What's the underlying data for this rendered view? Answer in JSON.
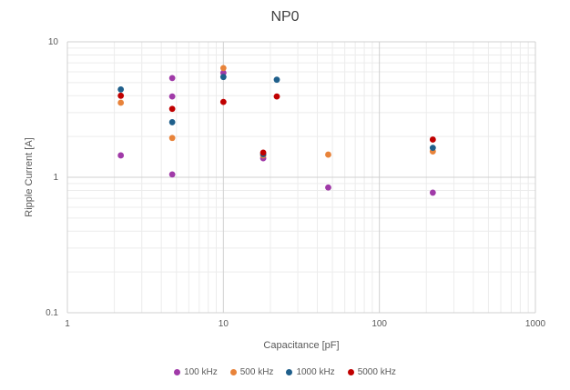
{
  "chart_data": {
    "type": "scatter",
    "title": "NP0",
    "xlabel": "Capacitance [pF]",
    "ylabel": "Ripple Current [A]",
    "xscale": "log",
    "yscale": "log",
    "xlim": [
      1,
      1000
    ],
    "ylim": [
      0.1,
      10
    ],
    "x_ticks": [
      "1",
      "10",
      "100",
      "1000"
    ],
    "y_ticks": [
      "0.1",
      "1",
      "10"
    ],
    "grid": true,
    "legend_position": "bottom",
    "series": [
      {
        "name": "100 kHz",
        "color": "#A03AA8",
        "x": [
          2.2,
          4.7,
          4.7,
          4.7,
          10,
          18,
          47,
          220
        ],
        "y": [
          1.45,
          5.4,
          3.95,
          1.05,
          5.9,
          1.38,
          0.84,
          0.77
        ]
      },
      {
        "name": "500 kHz",
        "color": "#E8833A",
        "x": [
          2.2,
          4.7,
          10,
          18,
          47,
          220
        ],
        "y": [
          3.55,
          1.95,
          6.4,
          1.45,
          1.47,
          1.55
        ]
      },
      {
        "name": "1000 kHz",
        "color": "#1F5F8B",
        "x": [
          2.2,
          4.7,
          10,
          18,
          22,
          220
        ],
        "y": [
          4.45,
          2.55,
          5.5,
          1.48,
          5.25,
          1.65
        ]
      },
      {
        "name": "5000 kHz",
        "color": "#C00000",
        "x": [
          2.2,
          4.7,
          10,
          18,
          22,
          220
        ],
        "y": [
          4.0,
          3.2,
          3.6,
          1.52,
          3.95,
          1.9
        ]
      }
    ]
  }
}
